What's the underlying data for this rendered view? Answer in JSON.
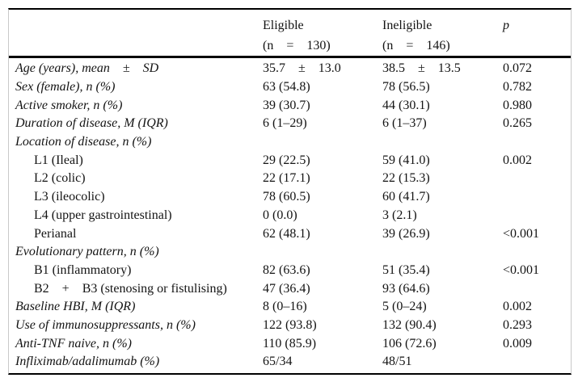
{
  "table": {
    "header": {
      "eligible": {
        "line1": "Eligible",
        "line2": "(n = 130)"
      },
      "ineligible": {
        "line1": "Ineligible",
        "line2": "(n = 146)"
      },
      "p_label": "p"
    },
    "rows": [
      {
        "label": "Age (years), mean ± SD",
        "style": "main",
        "eligible": "35.7 ± 13.0",
        "ineligible": "38.5 ± 13.5",
        "p": "0.072"
      },
      {
        "label": "Sex (female), n (%)",
        "style": "main",
        "eligible": "63 (54.8)",
        "ineligible": "78 (56.5)",
        "p": "0.782"
      },
      {
        "label": "Active smoker, n (%)",
        "style": "main",
        "eligible": "39 (30.7)",
        "ineligible": "44 (30.1)",
        "p": "0.980"
      },
      {
        "label": "Duration of disease, M (IQR)",
        "style": "main",
        "eligible": "6 (1–29)",
        "ineligible": "6 (1–37)",
        "p": "0.265"
      },
      {
        "label": "Location of disease, n (%)",
        "style": "main",
        "eligible": "",
        "ineligible": "",
        "p": ""
      },
      {
        "label": "L1 (Ileal)",
        "style": "sub",
        "eligible": "29 (22.5)",
        "ineligible": "59 (41.0)",
        "p": "0.002"
      },
      {
        "label": "L2 (colic)",
        "style": "sub",
        "eligible": "22 (17.1)",
        "ineligible": "22 (15.3)",
        "p": ""
      },
      {
        "label": "L3 (ileocolic)",
        "style": "sub",
        "eligible": "78 (60.5)",
        "ineligible": "60 (41.7)",
        "p": ""
      },
      {
        "label": "L4 (upper gastrointestinal)",
        "style": "sub",
        "eligible": "0 (0.0)",
        "ineligible": "3 (2.1)",
        "p": ""
      },
      {
        "label": "Perianal",
        "style": "sub",
        "eligible": "62 (48.1)",
        "ineligible": "39 (26.9)",
        "p": "<0.001"
      },
      {
        "label": "Evolutionary pattern, n (%)",
        "style": "main",
        "eligible": "",
        "ineligible": "",
        "p": ""
      },
      {
        "label": "B1 (inflammatory)",
        "style": "sub",
        "eligible": "82 (63.6)",
        "ineligible": "51 (35.4)",
        "p": "<0.001"
      },
      {
        "label": "B2 + B3 (stenosing or fistulising)",
        "style": "sub",
        "eligible": "47 (36.4)",
        "ineligible": "93 (64.6)",
        "p": ""
      },
      {
        "label": "Baseline HBI, M (IQR)",
        "style": "main",
        "eligible": "8 (0–16)",
        "ineligible": "5 (0–24)",
        "p": "0.002"
      },
      {
        "label": "Use of immunosuppressants, n (%)",
        "style": "main",
        "eligible": "122 (93.8)",
        "ineligible": "132 (90.4)",
        "p": "0.293"
      },
      {
        "label": "Anti-TNF naive, n (%)",
        "style": "main",
        "eligible": "110 (85.9)",
        "ineligible": "106 (72.6)",
        "p": "0.009"
      },
      {
        "label": "Infliximab/adalimumab (%)",
        "style": "main",
        "eligible": "65/34",
        "ineligible": "48/51",
        "p": ""
      }
    ],
    "colors": {
      "rule": "#000000",
      "frame_edge": "#c9c9c9",
      "text": "#141414",
      "background": "#ffffff"
    }
  }
}
